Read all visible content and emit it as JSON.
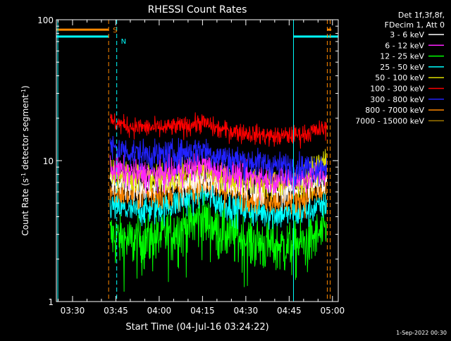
{
  "chart_data": {
    "type": "line",
    "title": "RHESSI Count Rates",
    "xlabel": "Start Time (04-Jul-16 03:24:22)",
    "ylabel": "Count Rate (s",
    "ylabel_sup": "-1",
    "ylabel_tail": " detector segment",
    "ylabel_tail_sup": "-1",
    "ylabel_close": ")",
    "yscale": "log",
    "ylim": [
      1,
      100
    ],
    "xlim_minutes": [
      204.4,
      302.0
    ],
    "y_ticks": [
      {
        "value": 1,
        "label": "1"
      },
      {
        "value": 10,
        "label": "10"
      },
      {
        "value": 100,
        "label": "100"
      }
    ],
    "x_ticks": [
      {
        "minutes": 210,
        "label": "03:30"
      },
      {
        "minutes": 225,
        "label": "03:45"
      },
      {
        "minutes": 240,
        "label": "04:00"
      },
      {
        "minutes": 255,
        "label": "04:15"
      },
      {
        "minutes": 270,
        "label": "04:30"
      },
      {
        "minutes": 285,
        "label": "04:45"
      },
      {
        "minutes": 300,
        "label": "05:00"
      }
    ],
    "data_start_minutes": 223,
    "data_end_minutes": 298,
    "legend": {
      "header1": "Det 1f,3f,8f,",
      "header2": "FDecim 1, Att 0",
      "placement": "outside-right"
    },
    "series": [
      {
        "name": "3 - 6 keV",
        "color": "#ffffff",
        "x": [
          223,
          230,
          240,
          250,
          255,
          260,
          270,
          280,
          290,
          298
        ],
        "y": [
          7.0,
          6.6,
          6.8,
          7.2,
          7.8,
          7.0,
          6.4,
          6.2,
          6.5,
          7.2
        ]
      },
      {
        "name": "6 - 12 keV",
        "color": "#ff22ff",
        "x": [
          223,
          230,
          240,
          250,
          255,
          260,
          270,
          280,
          290,
          298
        ],
        "y": [
          9.0,
          8.2,
          8.0,
          8.8,
          9.5,
          8.5,
          7.8,
          7.5,
          7.6,
          8.3
        ]
      },
      {
        "name": "12 - 25 keV",
        "color": "#00ff00",
        "x": [
          223,
          230,
          240,
          250,
          255,
          260,
          270,
          280,
          290,
          298
        ],
        "y": [
          3.0,
          2.7,
          2.9,
          3.5,
          4.0,
          3.3,
          2.8,
          2.5,
          2.6,
          3.2
        ]
      },
      {
        "name": "25 - 50 keV",
        "color": "#00ffff",
        "x": [
          223,
          230,
          240,
          250,
          255,
          260,
          270,
          280,
          290,
          298
        ],
        "y": [
          4.8,
          4.4,
          4.6,
          5.4,
          6.0,
          5.1,
          4.5,
          4.2,
          4.3,
          5.0
        ]
      },
      {
        "name": "50 - 100 keV",
        "color": "#dddd00",
        "x": [
          223,
          230,
          240,
          250,
          255,
          260,
          270,
          280,
          290,
          298
        ],
        "y": [
          8.5,
          7.8,
          7.6,
          8.2,
          8.8,
          7.9,
          7.3,
          7.0,
          7.2,
          10.5
        ]
      },
      {
        "name": "100 - 300 keV",
        "color": "#ff0000",
        "x": [
          223,
          230,
          240,
          250,
          255,
          260,
          270,
          280,
          290,
          298
        ],
        "y": [
          19.0,
          17.5,
          17.0,
          17.8,
          18.8,
          16.8,
          15.8,
          14.8,
          15.5,
          17.0
        ]
      },
      {
        "name": "300 - 800 keV",
        "color": "#2222ff",
        "x": [
          223,
          230,
          240,
          250,
          255,
          260,
          270,
          280,
          290,
          298
        ],
        "y": [
          12.5,
          11.5,
          11.0,
          11.6,
          12.2,
          10.8,
          10.0,
          9.3,
          9.0,
          9.3
        ]
      },
      {
        "name": "800 - 7000 keV",
        "color": "#ff8800",
        "x": [
          223,
          230,
          240,
          250,
          255,
          260,
          270,
          280,
          290,
          298
        ],
        "y": [
          6.2,
          5.8,
          5.9,
          6.6,
          7.2,
          6.4,
          5.8,
          5.4,
          5.5,
          6.2
        ]
      },
      {
        "name": "7000 - 15000 keV",
        "color": "#a07800",
        "x": [],
        "y": []
      }
    ],
    "markers": {
      "attenuator_label": "S",
      "attenuator_state_color": "#ff8800",
      "attenuator_state": [
        {
          "x0": 204.4,
          "x1": 222.5
        },
        {
          "x0": 298.2,
          "x1": 299.6
        }
      ],
      "attenuator_level": 85,
      "attenuator_lines": [
        222.5,
        298.2,
        299.2
      ],
      "night_label": "N",
      "night_state_color": "#00ffff",
      "night_state": [
        {
          "x0": 204.4,
          "x1": 222.5
        },
        {
          "x0": 286.5,
          "x1": 302.0
        }
      ],
      "night_level": 76,
      "night_solid_lines": [
        204.9,
        286.5
      ],
      "night_dashed_lines": [
        225.3
      ]
    },
    "grid": false,
    "footer": "1-Sep-2022 00:30"
  }
}
